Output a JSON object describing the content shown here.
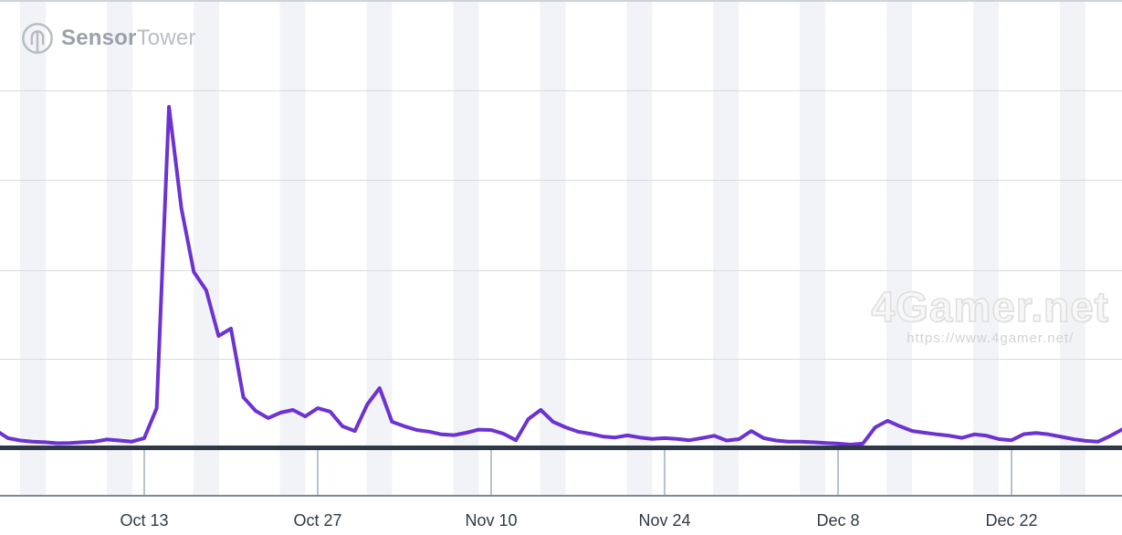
{
  "header": {
    "brand": {
      "name_bold": "Sensor",
      "name_light": "Tower"
    }
  },
  "watermark": {
    "title": "4Gamer.net",
    "url": "https://www.4gamer.net/"
  },
  "chart_data": {
    "type": "line",
    "title": "",
    "xlabel": "",
    "ylabel": "",
    "units": "relative scale (peak day = 100); y-axis unlabeled in image",
    "line_color": "#6d32d2",
    "legend": "none",
    "grid": "horizontal gridlines on, weekend bands shaded",
    "x_tick_labels": [
      "Oct 13",
      "Oct 27",
      "Nov 10",
      "Nov 24",
      "Dec 8",
      "Dec 22"
    ],
    "x_tick_indices": [
      12,
      26,
      40,
      54,
      68,
      82
    ],
    "ylim": [
      0,
      105
    ],
    "dates": [
      "Oct 1",
      "Oct 2",
      "Oct 3",
      "Oct 4",
      "Oct 5",
      "Oct 6",
      "Oct 7",
      "Oct 8",
      "Oct 9",
      "Oct 10",
      "Oct 11",
      "Oct 12",
      "Oct 13",
      "Oct 14",
      "Oct 15",
      "Oct 16",
      "Oct 17",
      "Oct 18",
      "Oct 19",
      "Oct 20",
      "Oct 21",
      "Oct 22",
      "Oct 23",
      "Oct 24",
      "Oct 25",
      "Oct 26",
      "Oct 27",
      "Oct 28",
      "Oct 29",
      "Oct 30",
      "Oct 31",
      "Nov 1",
      "Nov 2",
      "Nov 3",
      "Nov 4",
      "Nov 5",
      "Nov 6",
      "Nov 7",
      "Nov 8",
      "Nov 9",
      "Nov 10",
      "Nov 11",
      "Nov 12",
      "Nov 13",
      "Nov 14",
      "Nov 15",
      "Nov 16",
      "Nov 17",
      "Nov 18",
      "Nov 19",
      "Nov 20",
      "Nov 21",
      "Nov 22",
      "Nov 23",
      "Nov 24",
      "Nov 25",
      "Nov 26",
      "Nov 27",
      "Nov 28",
      "Nov 29",
      "Nov 30",
      "Dec 1",
      "Dec 2",
      "Dec 3",
      "Dec 4",
      "Dec 5",
      "Dec 6",
      "Dec 7",
      "Dec 8",
      "Dec 9",
      "Dec 10",
      "Dec 11",
      "Dec 12",
      "Dec 13",
      "Dec 14",
      "Dec 15",
      "Dec 16",
      "Dec 17",
      "Dec 18",
      "Dec 19",
      "Dec 20",
      "Dec 21",
      "Dec 22",
      "Dec 23",
      "Dec 24",
      "Dec 25",
      "Dec 26",
      "Dec 27",
      "Dec 28",
      "Dec 29",
      "Dec 30",
      "Dec 31"
    ],
    "values": [
      5.1,
      2.7,
      2.0,
      1.7,
      1.5,
      1.2,
      1.3,
      1.5,
      1.7,
      2.3,
      2.0,
      1.7,
      2.7,
      11.5,
      100,
      70.2,
      51.5,
      46.1,
      32.7,
      34.9,
      14.7,
      10.7,
      8.6,
      10.2,
      11.0,
      9.1,
      11.5,
      10.5,
      6.2,
      4.8,
      12.6,
      17.4,
      7.5,
      6.2,
      5.1,
      4.6,
      3.8,
      3.6,
      4.3,
      5.2,
      5.1,
      4.0,
      2.1,
      8.3,
      11.0,
      7.5,
      5.9,
      4.6,
      4.0,
      3.2,
      2.9,
      3.5,
      2.9,
      2.5,
      2.7,
      2.5,
      2.1,
      2.7,
      3.4,
      2.0,
      2.4,
      4.8,
      2.7,
      2.0,
      1.7,
      1.7,
      1.5,
      1.3,
      1.1,
      0.8,
      1.1,
      5.9,
      7.8,
      6.2,
      4.8,
      4.3,
      3.8,
      3.4,
      2.8,
      3.8,
      3.4,
      2.4,
      2.1,
      3.9,
      4.2,
      3.8,
      3.1,
      2.4,
      1.9,
      1.7,
      3.4,
      5.4
    ]
  }
}
